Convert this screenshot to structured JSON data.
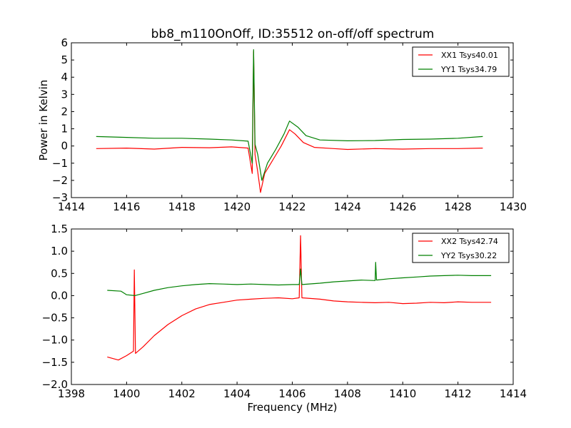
{
  "figure": {
    "title": "bb8_m110OnOff, ID:35512 on-off/off spectrum"
  },
  "chart_data": [
    {
      "type": "line",
      "title": "bb8_m110OnOff, ID:35512 on-off/off spectrum",
      "xlabel": "",
      "ylabel": "Power in Kelvin",
      "xlim": [
        1414,
        1430
      ],
      "ylim": [
        -3,
        6
      ],
      "xticks": [
        "1414",
        "1416",
        "1418",
        "1420",
        "1422",
        "1424",
        "1426",
        "1428",
        "1430"
      ],
      "yticks": [
        "−3",
        "−2",
        "−1",
        "0",
        "1",
        "2",
        "3",
        "4",
        "5",
        "6"
      ],
      "grid": false,
      "legend_position": "top-right",
      "series": [
        {
          "name": "XX1 Tsys40.01",
          "color": "#ff0000",
          "points": [
            [
              1414.9,
              -0.15
            ],
            [
              1416,
              -0.12
            ],
            [
              1417,
              -0.18
            ],
            [
              1418,
              -0.08
            ],
            [
              1419,
              -0.1
            ],
            [
              1419.8,
              -0.05
            ],
            [
              1420.4,
              -0.12
            ],
            [
              1420.55,
              -1.6
            ],
            [
              1420.6,
              5.5
            ],
            [
              1420.65,
              -0.5
            ],
            [
              1420.75,
              -1.5
            ],
            [
              1420.85,
              -2.7
            ],
            [
              1421.0,
              -1.6
            ],
            [
              1421.3,
              -0.8
            ],
            [
              1421.6,
              0.0
            ],
            [
              1421.9,
              0.95
            ],
            [
              1422.1,
              0.7
            ],
            [
              1422.4,
              0.2
            ],
            [
              1422.8,
              -0.08
            ],
            [
              1423.5,
              -0.15
            ],
            [
              1424,
              -0.2
            ],
            [
              1425,
              -0.15
            ],
            [
              1426,
              -0.18
            ],
            [
              1427,
              -0.15
            ],
            [
              1428,
              -0.15
            ],
            [
              1428.9,
              -0.12
            ]
          ]
        },
        {
          "name": "YY1 Tsys34.79",
          "color": "#008000",
          "points": [
            [
              1414.9,
              0.55
            ],
            [
              1416,
              0.5
            ],
            [
              1417,
              0.45
            ],
            [
              1418,
              0.45
            ],
            [
              1419,
              0.4
            ],
            [
              1419.8,
              0.35
            ],
            [
              1420.4,
              0.28
            ],
            [
              1420.55,
              -1.0
            ],
            [
              1420.6,
              5.6
            ],
            [
              1420.65,
              0.1
            ],
            [
              1420.75,
              -0.5
            ],
            [
              1420.9,
              -2.0
            ],
            [
              1421.1,
              -1.0
            ],
            [
              1421.4,
              -0.2
            ],
            [
              1421.7,
              0.7
            ],
            [
              1421.9,
              1.45
            ],
            [
              1422.2,
              1.1
            ],
            [
              1422.5,
              0.6
            ],
            [
              1423,
              0.35
            ],
            [
              1424,
              0.3
            ],
            [
              1425,
              0.32
            ],
            [
              1426,
              0.38
            ],
            [
              1427,
              0.4
            ],
            [
              1428,
              0.45
            ],
            [
              1428.9,
              0.55
            ]
          ]
        }
      ]
    },
    {
      "type": "line",
      "title": "",
      "xlabel": "Frequency (MHz)",
      "ylabel": "",
      "xlim": [
        1398,
        1414
      ],
      "ylim": [
        -2.0,
        1.5
      ],
      "xticks": [
        "1398",
        "1400",
        "1402",
        "1404",
        "1406",
        "1408",
        "1410",
        "1412",
        "1414"
      ],
      "yticks": [
        "−2.0",
        "−1.5",
        "−1.0",
        "−0.5",
        "0.0",
        "0.5",
        "1.0",
        "1.5"
      ],
      "grid": false,
      "legend_position": "top-right",
      "series": [
        {
          "name": "XX2 Tsys42.74",
          "color": "#ff0000",
          "points": [
            [
              1399.3,
              -1.38
            ],
            [
              1399.7,
              -1.45
            ],
            [
              1400.0,
              -1.35
            ],
            [
              1400.25,
              -1.25
            ],
            [
              1400.28,
              0.58
            ],
            [
              1400.32,
              -1.3
            ],
            [
              1400.6,
              -1.15
            ],
            [
              1401,
              -0.9
            ],
            [
              1401.5,
              -0.65
            ],
            [
              1402,
              -0.45
            ],
            [
              1402.5,
              -0.3
            ],
            [
              1403,
              -0.2
            ],
            [
              1403.5,
              -0.15
            ],
            [
              1404,
              -0.1
            ],
            [
              1404.5,
              -0.08
            ],
            [
              1405,
              -0.06
            ],
            [
              1405.5,
              -0.05
            ],
            [
              1406,
              -0.07
            ],
            [
              1406.25,
              -0.05
            ],
            [
              1406.3,
              1.35
            ],
            [
              1406.35,
              -0.05
            ],
            [
              1407,
              -0.08
            ],
            [
              1407.5,
              -0.12
            ],
            [
              1408,
              -0.14
            ],
            [
              1408.5,
              -0.15
            ],
            [
              1409,
              -0.16
            ],
            [
              1409.5,
              -0.15
            ],
            [
              1410,
              -0.18
            ],
            [
              1410.5,
              -0.17
            ],
            [
              1411,
              -0.15
            ],
            [
              1411.5,
              -0.16
            ],
            [
              1412,
              -0.14
            ],
            [
              1412.5,
              -0.15
            ],
            [
              1413.2,
              -0.15
            ]
          ]
        },
        {
          "name": "YY2 Tsys30.22",
          "color": "#008000",
          "points": [
            [
              1399.3,
              0.12
            ],
            [
              1399.8,
              0.1
            ],
            [
              1400.0,
              0.02
            ],
            [
              1400.3,
              0.0
            ],
            [
              1400.6,
              0.05
            ],
            [
              1401,
              0.12
            ],
            [
              1401.5,
              0.18
            ],
            [
              1402,
              0.22
            ],
            [
              1402.5,
              0.25
            ],
            [
              1403,
              0.27
            ],
            [
              1403.5,
              0.26
            ],
            [
              1404,
              0.25
            ],
            [
              1404.5,
              0.26
            ],
            [
              1405,
              0.25
            ],
            [
              1405.5,
              0.24
            ],
            [
              1406,
              0.25
            ],
            [
              1406.25,
              0.25
            ],
            [
              1406.3,
              0.6
            ],
            [
              1406.35,
              0.25
            ],
            [
              1407,
              0.28
            ],
            [
              1407.5,
              0.31
            ],
            [
              1408,
              0.33
            ],
            [
              1408.5,
              0.35
            ],
            [
              1409.0,
              0.34
            ],
            [
              1409.02,
              0.75
            ],
            [
              1409.05,
              0.35
            ],
            [
              1409.5,
              0.38
            ],
            [
              1410,
              0.4
            ],
            [
              1410.5,
              0.42
            ],
            [
              1411,
              0.44
            ],
            [
              1411.5,
              0.45
            ],
            [
              1412,
              0.46
            ],
            [
              1412.5,
              0.45
            ],
            [
              1413.2,
              0.45
            ]
          ]
        }
      ]
    }
  ]
}
